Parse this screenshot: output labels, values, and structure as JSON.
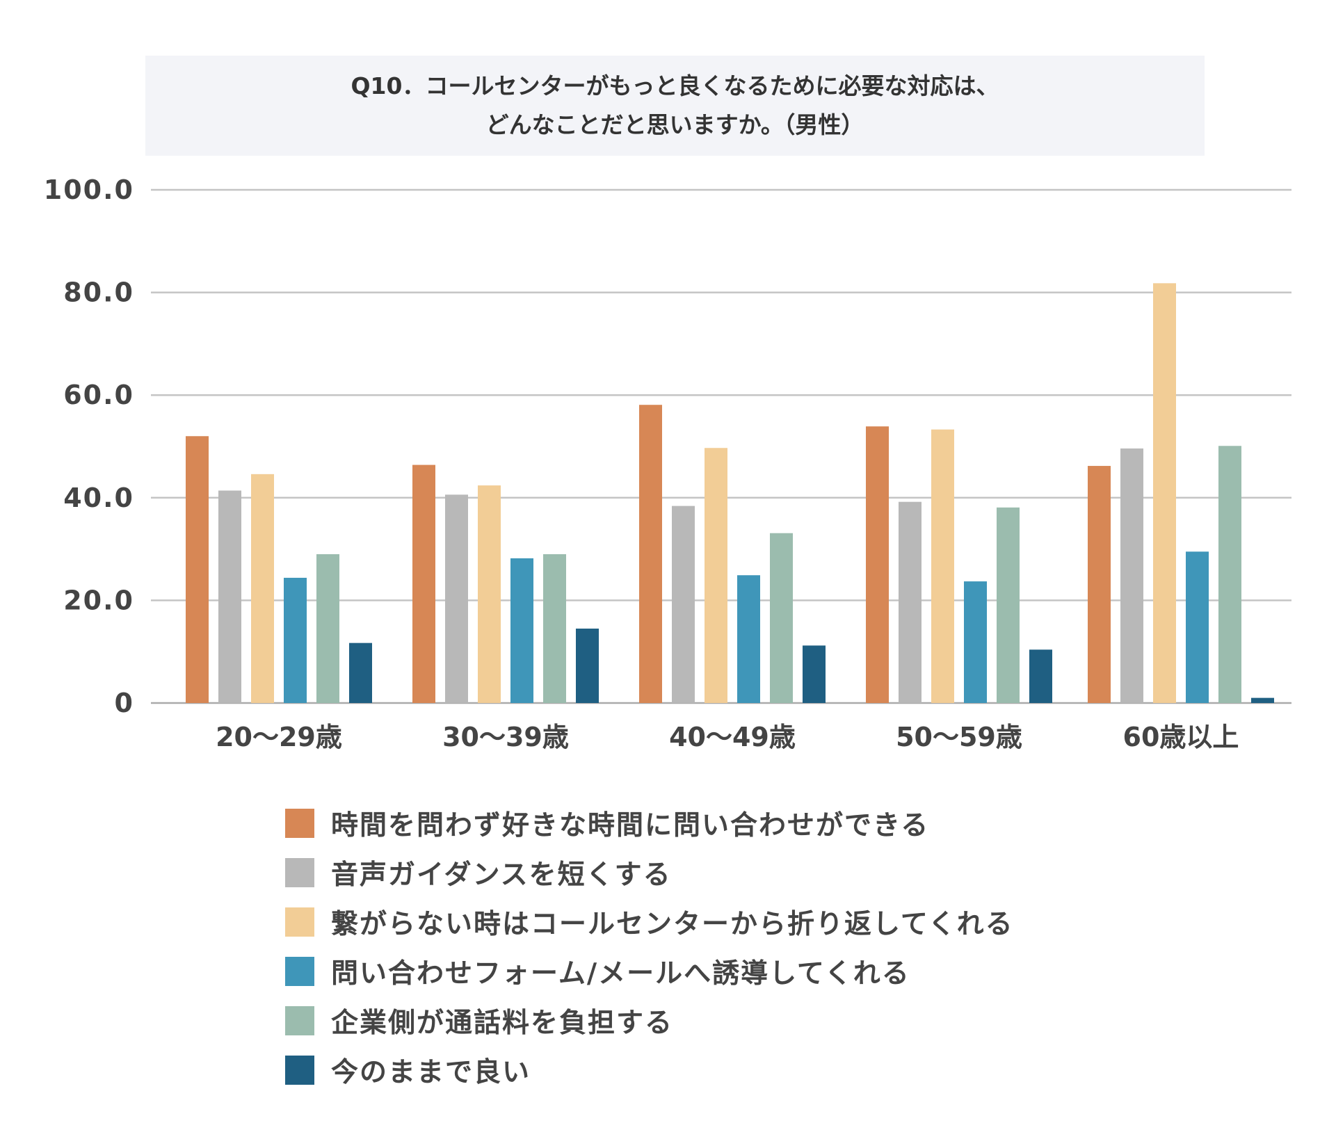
{
  "chart_data": {
    "type": "bar",
    "title": [
      "Q10．コールセンターがもっと良くなるために必要な対応は、",
      "どんなことだと思いますか。（男性）"
    ],
    "categories": [
      "20〜29歳",
      "30〜39歳",
      "40〜49歳",
      "50〜59歳",
      "60歳以上"
    ],
    "ylim": [
      0,
      100
    ],
    "yticks": [
      "0",
      "20.0",
      "40.0",
      "60.0",
      "80.0",
      "100.0"
    ],
    "ytick_values": [
      0,
      20,
      40,
      60,
      80,
      100
    ],
    "grid": true,
    "legend_placement": "bottom",
    "series": [
      {
        "name": "時間を問わず好きな時間に問い合わせができる",
        "color": "#d78755",
        "values": [
          52.0,
          46.4,
          58.1,
          53.9,
          46.2
        ]
      },
      {
        "name": "音声ガイダンスを短くする",
        "color": "#b8b8b8",
        "values": [
          41.4,
          40.6,
          38.4,
          39.2,
          49.6
        ]
      },
      {
        "name": "繋がらない時はコールセンターから折り返してくれる",
        "color": "#f2cd96",
        "values": [
          44.6,
          42.4,
          49.7,
          53.3,
          81.8
        ]
      },
      {
        "name": "問い合わせフォーム/メールへ誘導してくれる",
        "color": "#3f96b9",
        "values": [
          24.4,
          28.2,
          24.9,
          23.7,
          29.5
        ]
      },
      {
        "name": "企業側が通話料を負担する",
        "color": "#9bbcae",
        "values": [
          29.0,
          29.0,
          33.1,
          38.1,
          50.1
        ]
      },
      {
        "name": "今のままで良い",
        "color": "#1f5f82",
        "values": [
          11.7,
          14.5,
          11.2,
          10.4,
          1.0
        ]
      }
    ]
  }
}
